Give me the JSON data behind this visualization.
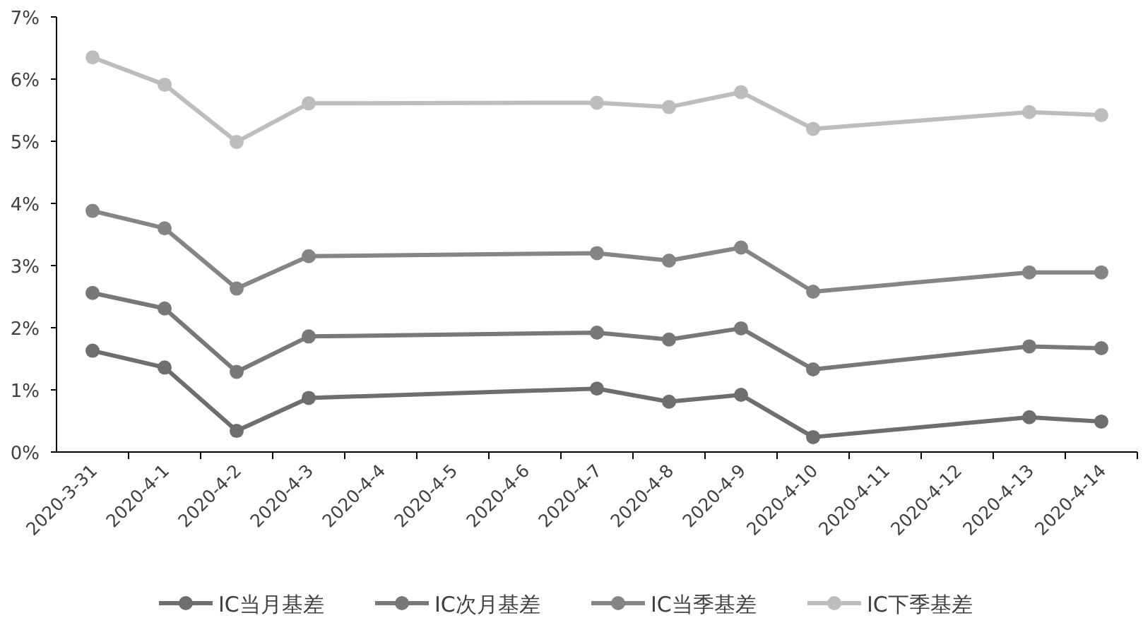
{
  "chart_data": {
    "type": "line",
    "categories": [
      "2020-3-31",
      "2020-4-1",
      "2020-4-2",
      "2020-4-3",
      "2020-4-4",
      "2020-4-5",
      "2020-4-6",
      "2020-4-7",
      "2020-4-8",
      "2020-4-9",
      "2020-4-10",
      "2020-4-11",
      "2020-4-12",
      "2020-4-13",
      "2020-4-14"
    ],
    "series": [
      {
        "name": "IC当月基差",
        "color": "#6e6e6e",
        "values": [
          1.63,
          1.36,
          0.34,
          0.87,
          null,
          null,
          null,
          1.02,
          0.81,
          0.92,
          0.24,
          null,
          null,
          0.56,
          0.49
        ]
      },
      {
        "name": "IC次月基差",
        "color": "#787878",
        "values": [
          2.56,
          2.31,
          1.29,
          1.86,
          null,
          null,
          null,
          1.92,
          1.81,
          1.99,
          1.33,
          null,
          null,
          1.7,
          1.67
        ]
      },
      {
        "name": "IC当季基差",
        "color": "#858585",
        "values": [
          3.88,
          3.6,
          2.63,
          3.15,
          null,
          null,
          null,
          3.2,
          3.08,
          3.29,
          2.58,
          null,
          null,
          2.89,
          2.89
        ]
      },
      {
        "name": "IC下季基差",
        "color": "#bdbdbd",
        "values": [
          6.35,
          5.91,
          4.99,
          5.61,
          null,
          null,
          null,
          5.62,
          5.55,
          5.79,
          5.2,
          null,
          null,
          5.47,
          5.42
        ]
      }
    ],
    "ylim": [
      0,
      7
    ],
    "yticks": [
      {
        "value": 0,
        "label": "0%"
      },
      {
        "value": 1,
        "label": "1%"
      },
      {
        "value": 2,
        "label": "2%"
      },
      {
        "value": 3,
        "label": "3%"
      },
      {
        "value": 4,
        "label": "4%"
      },
      {
        "value": 5,
        "label": "5%"
      },
      {
        "value": 6,
        "label": "6%"
      },
      {
        "value": 7,
        "label": "7%"
      }
    ],
    "grid": false,
    "legend": "bottom",
    "marker": "circle",
    "line_style": "solid"
  }
}
